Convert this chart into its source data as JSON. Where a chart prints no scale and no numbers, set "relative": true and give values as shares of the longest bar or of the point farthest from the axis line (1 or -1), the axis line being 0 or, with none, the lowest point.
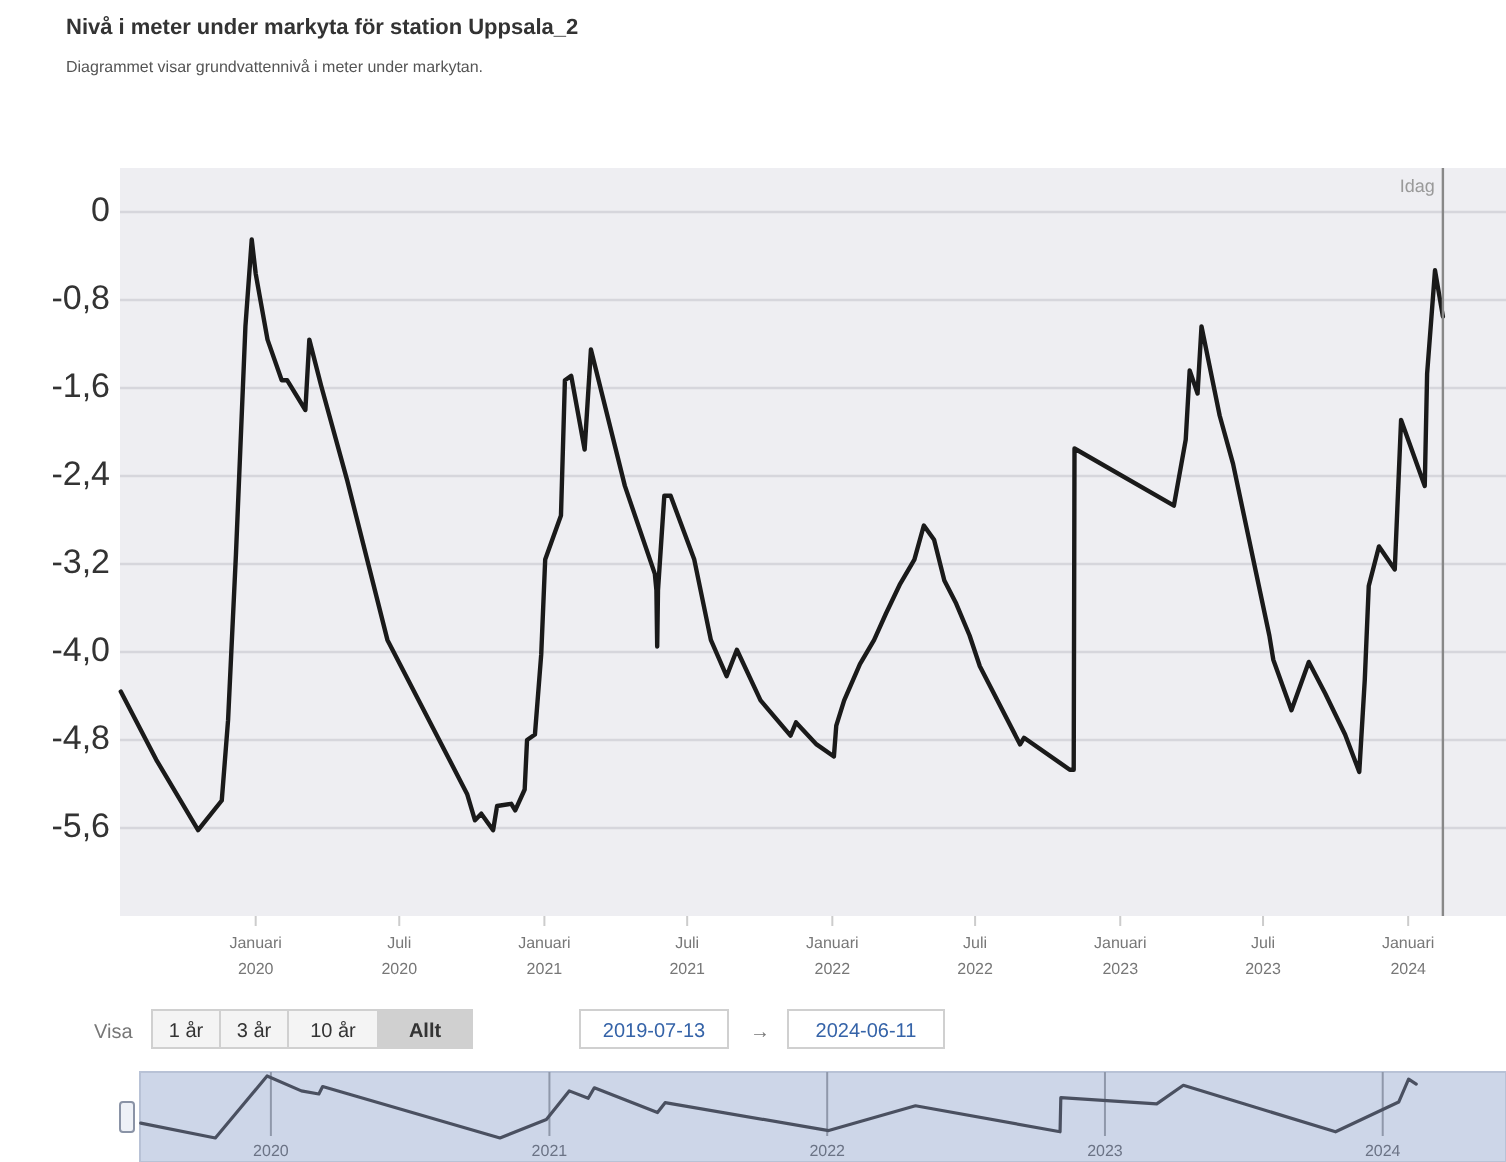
{
  "chart_data": [
    {
      "type": "line",
      "title": "Nivå i meter under markyta för station Uppsala_2",
      "subtitle": "Diagrammet visar grundvattennivå i meter under markytan.",
      "xlim": [
        "2019-07-13",
        "2024-05-04"
      ],
      "xticks": [
        {
          "value": "2020-01-01",
          "label": "Januari 2020"
        },
        {
          "value": "2020-07-01",
          "label": "Juli 2020"
        },
        {
          "value": "2021-01-01",
          "label": "Januari 2021"
        },
        {
          "value": "2021-07-01",
          "label": "Juli 2021"
        },
        {
          "value": "2022-01-01",
          "label": "Januari 2022"
        },
        {
          "value": "2022-07-01",
          "label": "Juli 2022"
        },
        {
          "value": "2023-01-01",
          "label": "Januari 2023"
        },
        {
          "value": "2023-07-01",
          "label": "Juli 2023"
        },
        {
          "value": "2024-01-01",
          "label": "Januari 2024"
        }
      ],
      "ylim": [
        -6.4,
        0.4
      ],
      "yticks": [
        {
          "value": 0,
          "label": "0"
        },
        {
          "value": -0.8,
          "label": "-0,8"
        },
        {
          "value": -1.6,
          "label": "-1,6"
        },
        {
          "value": -2.4,
          "label": "-2,4"
        },
        {
          "value": -3.2,
          "label": "-3,2"
        },
        {
          "value": -4,
          "label": "-4,0"
        },
        {
          "value": -4.8,
          "label": "-4,8"
        },
        {
          "value": -5.6,
          "label": "-5,6"
        }
      ],
      "grid": "y",
      "ref_lines": [
        {
          "axis": "x",
          "value": "2024-02-14",
          "label": "Idag",
          "color": "#888888"
        }
      ],
      "annotations": [
        "Visa",
        "1 år",
        "3 år",
        "10 år",
        "Allt",
        "2019-07-13",
        "→",
        "2024-06-11"
      ],
      "series": [
        {
          "color": "#1a1a1a",
          "x": [
            "2019-07-14",
            "2019-08-28",
            "2019-10-20",
            "2019-11-19",
            "2019-11-27",
            "2019-12-07",
            "2019-12-19",
            "2019-12-27",
            "2020-01-01",
            "2020-01-16",
            "2020-02-03",
            "2020-02-10",
            "2020-03-04",
            "2020-03-09",
            "2020-03-24",
            "2020-04-26",
            "2020-06-16",
            "2020-09-25",
            "2020-10-05",
            "2020-10-13",
            "2020-10-28",
            "2020-11-02",
            "2020-11-20",
            "2020-11-25",
            "2020-12-07",
            "2020-12-10",
            "2020-12-20",
            "2020-12-28",
            "2021-01-02",
            "2021-01-22",
            "2021-01-27",
            "2021-02-04",
            "2021-02-21",
            "2021-03-01",
            "2021-04-13",
            "2021-05-21",
            "2021-05-23",
            "2021-05-24",
            "2021-05-25",
            "2021-06-02",
            "2021-06-10",
            "2021-07-10",
            "2021-07-31",
            "2021-08-20",
            "2021-09-02",
            "2021-10-02",
            "2021-11-09",
            "2021-11-16",
            "2021-12-12",
            "2022-01-03",
            "2022-01-06",
            "2022-01-16",
            "2022-02-05",
            "2022-02-23",
            "2022-03-10",
            "2022-03-28",
            "2022-04-15",
            "2022-04-27",
            "2022-05-10",
            "2022-05-23",
            "2022-06-07",
            "2022-06-24",
            "2022-07-07",
            "2022-08-27",
            "2022-09-01",
            "2022-10-29",
            "2022-11-03",
            "2022-11-04",
            "2023-03-10",
            "2023-03-25",
            "2023-03-30",
            "2023-04-09",
            "2023-04-14",
            "2023-05-07",
            "2023-05-24",
            "2023-07-09",
            "2023-07-14",
            "2023-08-06",
            "2023-08-28",
            "2023-09-18",
            "2023-10-13",
            "2023-10-31",
            "2023-11-07",
            "2023-11-12",
            "2023-11-25",
            "2023-12-15",
            "2023-12-23",
            "2024-01-22",
            "2024-01-25",
            "2024-02-04",
            "2024-02-14"
          ],
          "values": [
            -4.36,
            -4.98,
            -5.62,
            -5.35,
            -4.62,
            -3.11,
            -1.04,
            -0.25,
            -0.56,
            -1.16,
            -1.53,
            -1.53,
            -1.8,
            -1.16,
            -1.58,
            -2.44,
            -3.89,
            -5.29,
            -5.53,
            -5.47,
            -5.62,
            -5.4,
            -5.38,
            -5.44,
            -5.25,
            -4.8,
            -4.75,
            -4.02,
            -3.16,
            -2.76,
            -1.53,
            -1.49,
            -2.16,
            -1.25,
            -2.49,
            -3.29,
            -3.44,
            -3.95,
            -3.44,
            -2.58,
            -2.58,
            -3.16,
            -3.89,
            -4.22,
            -3.98,
            -4.44,
            -4.76,
            -4.64,
            -4.84,
            -4.95,
            -4.67,
            -4.44,
            -4.11,
            -3.89,
            -3.65,
            -3.38,
            -3.16,
            -2.85,
            -2.98,
            -3.35,
            -3.56,
            -3.85,
            -4.13,
            -4.84,
            -4.78,
            -5.07,
            -5.07,
            -2.15,
            -2.67,
            -2.07,
            -1.44,
            -1.65,
            -1.04,
            -1.85,
            -2.29,
            -3.85,
            -4.07,
            -4.53,
            -4.09,
            -4.38,
            -4.75,
            -5.09,
            -4.25,
            -3.4,
            -3.04,
            -3.25,
            -1.89,
            -2.49,
            -1.47,
            -0.53,
            -0.95
          ]
        }
      ]
    },
    {
      "type": "line",
      "relative": true,
      "tick_labels": "x",
      "grid": "x",
      "xlim": [
        "2019-07-13",
        "2024-06-11"
      ],
      "xticks": [
        {
          "value": "2020-01-01",
          "label": "2020"
        },
        {
          "value": "2021-01-01",
          "label": "2021"
        },
        {
          "value": "2022-01-01",
          "label": "2022"
        },
        {
          "value": "2023-01-01",
          "label": "2023"
        },
        {
          "value": "2024-01-01",
          "label": "2024"
        }
      ],
      "series": [
        {
          "color": "#4a5060",
          "x": [
            "2019-07-14",
            "2019-10-20",
            "2019-12-27",
            "2020-02-10",
            "2020-03-04",
            "2020-03-09",
            "2020-10-28",
            "2020-12-28",
            "2021-01-27",
            "2021-02-21",
            "2021-03-01",
            "2021-05-23",
            "2021-06-02",
            "2022-01-03",
            "2022-04-27",
            "2022-11-03",
            "2022-11-04",
            "2023-03-10",
            "2023-04-14",
            "2023-10-31",
            "2024-01-22",
            "2024-02-04",
            "2024-02-14"
          ],
          "values": [
            0.24,
            0,
            1,
            0.76,
            0.71,
            0.83,
            0,
            0.3,
            0.76,
            0.64,
            0.81,
            0.41,
            0.57,
            0.12,
            0.52,
            0.1,
            0.65,
            0.55,
            0.85,
            0.1,
            0.58,
            0.95,
            0.87
          ]
        }
      ]
    }
  ]
}
